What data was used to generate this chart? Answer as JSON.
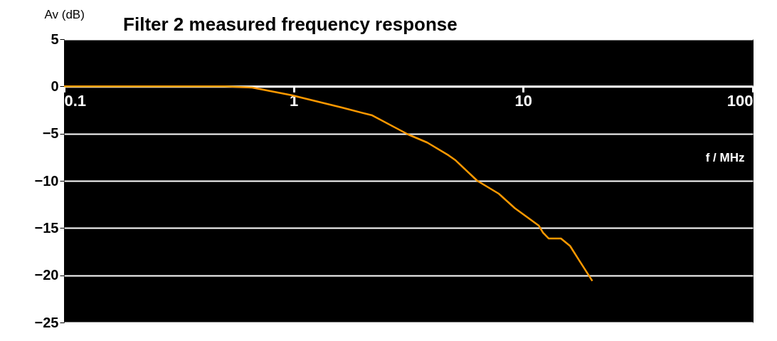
{
  "chart_data": {
    "type": "line",
    "title": "Filter 2 measured frequency response",
    "xlabel": "f / MHz",
    "ylabel": "Av (dB)",
    "log": "x",
    "x": [
      0.1,
      0.5,
      0.66,
      0.98,
      1.62,
      2.2,
      3.16,
      3.82,
      4.73,
      5.08,
      6.31,
      7.82,
      9.2,
      11.7,
      12.2,
      12.9,
      14.6,
      16.0,
      17.5,
      20.0
    ],
    "series": [
      {
        "color": "#ff9900",
        "values": [
          0,
          0,
          -0.13,
          -0.93,
          -2.24,
          -3.07,
          -5.1,
          -5.95,
          -7.3,
          -7.84,
          -10.0,
          -11.36,
          -12.9,
          -14.75,
          -15.5,
          -16.1,
          -16.1,
          -16.9,
          -18.4,
          -20.6
        ]
      }
    ],
    "xlim": [
      0.1,
      100
    ],
    "xticks": [
      0.1,
      1,
      10,
      100
    ],
    "ylim": [
      -25,
      5
    ],
    "yticks": [
      5,
      0,
      -5,
      -10,
      -15,
      -20,
      -25
    ],
    "grid": "y",
    "legend": false
  }
}
